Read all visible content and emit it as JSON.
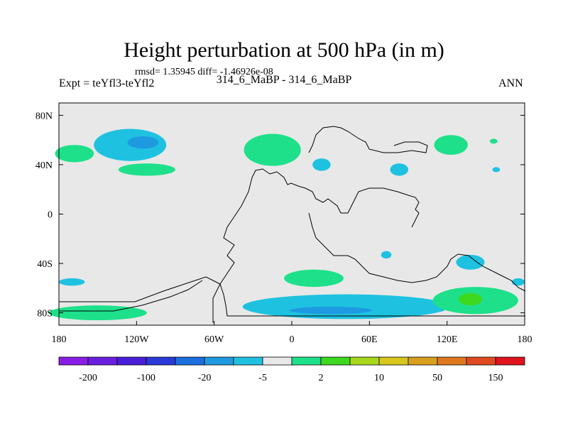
{
  "title": "Height perturbation at 500 hPa (in m)",
  "stats": "rmsd= 1.35945 diff= -1.46926e-08",
  "expt_label": "Expt = teYfl3-teYfl2",
  "experiment_names": "314_6_MaBP - 314_6_MaBP",
  "season": "ANN",
  "chart_data": {
    "type": "heatmap",
    "title": "Height perturbation at 500 hPa (in m)",
    "xlabel": "",
    "ylabel": "",
    "xlim": [
      -180,
      180
    ],
    "ylim": [
      -90,
      90
    ],
    "x_ticks": [
      {
        "value": -180,
        "label": "180"
      },
      {
        "value": -120,
        "label": "120W"
      },
      {
        "value": -60,
        "label": "60W"
      },
      {
        "value": 0,
        "label": "0"
      },
      {
        "value": 60,
        "label": "60E"
      },
      {
        "value": 120,
        "label": "120E"
      },
      {
        "value": 180,
        "label": "180"
      }
    ],
    "y_ticks": [
      {
        "value": 80,
        "label": "80N"
      },
      {
        "value": 40,
        "label": "40N"
      },
      {
        "value": 0,
        "label": "0"
      },
      {
        "value": -40,
        "label": "40S"
      },
      {
        "value": -80,
        "label": "80S"
      }
    ],
    "colorbar": {
      "colors": [
        "#8a1ee6",
        "#6a1ee0",
        "#4a1ed8",
        "#2a3ad8",
        "#1a6ee0",
        "#1e9ae0",
        "#1ec2e0",
        "#e8e8e8",
        "#1ee08a",
        "#3ed81e",
        "#aad81e",
        "#d8c81e",
        "#d8a01e",
        "#e0781e",
        "#e04a1e",
        "#e0141e"
      ],
      "labels": [
        "-200",
        "-100",
        "-20",
        "-5",
        "2",
        "10",
        "50",
        "150"
      ]
    },
    "regions": [
      {
        "name": "n-pacific-blue",
        "lon": -125,
        "lat": 56,
        "rlon": 28,
        "rlat": 13,
        "color": "#1ec2e0"
      },
      {
        "name": "n-pacific-core",
        "lon": -115,
        "lat": 58,
        "rlon": 12,
        "rlat": 5,
        "color": "#1e9ae0"
      },
      {
        "name": "us-green",
        "lon": -112,
        "lat": 36,
        "rlon": 22,
        "rlat": 5,
        "color": "#1ee08a"
      },
      {
        "name": "w-pacific-green",
        "lon": -168,
        "lat": 49,
        "rlon": 15,
        "rlat": 7,
        "color": "#1ee08a"
      },
      {
        "name": "n-atlantic-green",
        "lon": -15,
        "lat": 52,
        "rlon": 22,
        "rlat": 13,
        "color": "#1ee08a"
      },
      {
        "name": "europe-blue",
        "lon": 23,
        "lat": 40,
        "rlon": 7,
        "rlat": 5,
        "color": "#1ec2e0"
      },
      {
        "name": "asia-green",
        "lon": 123,
        "lat": 56,
        "rlon": 13,
        "rlat": 8,
        "color": "#1ee08a"
      },
      {
        "name": "asia-blue",
        "lon": 83,
        "lat": 36,
        "rlon": 7,
        "rlat": 5,
        "color": "#1ec2e0"
      },
      {
        "name": "s-indian-blue",
        "lon": 73,
        "lat": -33,
        "rlon": 4,
        "rlat": 3,
        "color": "#1ec2e0"
      },
      {
        "name": "s-pacific-blue",
        "lon": 138,
        "lat": -39,
        "rlon": 11,
        "rlat": 6,
        "color": "#1ec2e0"
      },
      {
        "name": "s-atlantic-green",
        "lon": 17,
        "lat": -52,
        "rlon": 23,
        "rlat": 7,
        "color": "#1ee08a"
      },
      {
        "name": "antarctic-blue",
        "lon": 42,
        "lat": -75,
        "rlon": 80,
        "rlat": 10,
        "color": "#1ec2e0"
      },
      {
        "name": "antarctic-core",
        "lon": 30,
        "lat": -78,
        "rlon": 32,
        "rlat": 3,
        "color": "#1e9ae0"
      },
      {
        "name": "s-pac-east-green",
        "lon": 142,
        "lat": -70,
        "rlon": 33,
        "rlat": 11,
        "color": "#1ee08a"
      },
      {
        "name": "s-pac-east-core",
        "lon": 138,
        "lat": -69,
        "rlon": 9,
        "rlat": 5,
        "color": "#3ed81e"
      },
      {
        "name": "sw-pacific-green",
        "lon": -150,
        "lat": -80,
        "rlon": 38,
        "rlat": 6,
        "color": "#1ee08a"
      },
      {
        "name": "sw-pacific-blue",
        "lon": -170,
        "lat": -55,
        "rlon": 10,
        "rlat": 3,
        "color": "#1ec2e0"
      },
      {
        "name": "dateline-blue",
        "lon": 175,
        "lat": -55,
        "rlon": 5,
        "rlat": 3,
        "color": "#1ec2e0"
      },
      {
        "name": "ne-pacific-blue",
        "lon": 158,
        "lat": 36,
        "rlon": 3,
        "rlat": 2,
        "color": "#1ec2e0"
      },
      {
        "name": "ne-pacific-green",
        "lon": 156,
        "lat": 59,
        "rlon": 3,
        "rlat": 2,
        "color": "#1ee08a"
      }
    ]
  }
}
